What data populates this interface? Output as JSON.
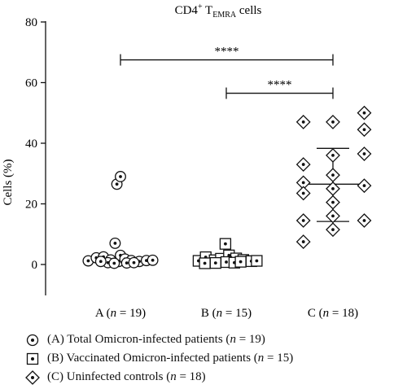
{
  "chart_data": {
    "type": "scatter",
    "title": "CD4+ TEMRA cells",
    "title_parts": {
      "base": "CD4",
      "sup": "+",
      "mid": " T",
      "sub": "EMRA",
      "tail": " cells"
    },
    "ylabel": "Cells (%)",
    "xlabel": "",
    "ylim": [
      0,
      80
    ],
    "yticks": [
      "0",
      "20",
      "40",
      "60",
      "80"
    ],
    "categories": [
      "A (n = 19)",
      "B (n = 15)",
      "C (n = 18)"
    ],
    "category_parts": [
      {
        "letter": "A",
        "n": "19"
      },
      {
        "letter": "B",
        "n": "15"
      },
      {
        "letter": "C",
        "n": "18"
      }
    ],
    "grid": false,
    "series": [
      {
        "name": "(A) Total Omicron-infected patients (n = 19)",
        "marker": "circle",
        "points": [
          [
            -0.36,
            1.2
          ],
          [
            -0.27,
            2.2
          ],
          [
            -0.19,
            2.5
          ],
          [
            -0.11,
            1.5
          ],
          [
            -0.02,
            1.0
          ],
          [
            -0.06,
            7.0
          ],
          [
            0.0,
            3.0
          ],
          [
            0.05,
            1.8
          ],
          [
            0.12,
            1.3
          ],
          [
            0.21,
            1.0
          ],
          [
            0.29,
            1.3
          ],
          [
            0.36,
            1.4
          ],
          [
            -0.14,
            0.6
          ],
          [
            -0.07,
            0.4
          ],
          [
            0.07,
            0.5
          ],
          [
            0.15,
            0.6
          ],
          [
            -0.22,
            1.0
          ],
          [
            -0.04,
            26.5
          ],
          [
            0.0,
            29.0
          ]
        ]
      },
      {
        "name": "(B) Vaccinated Omicron-infected patients (n = 15)",
        "marker": "square",
        "points": [
          [
            -0.31,
            1.2
          ],
          [
            -0.23,
            2.4
          ],
          [
            -0.13,
            1.4
          ],
          [
            -0.06,
            1.9
          ],
          [
            -0.01,
            6.8
          ],
          [
            0.03,
            3.0
          ],
          [
            0.11,
            2.0
          ],
          [
            0.19,
            1.5
          ],
          [
            0.28,
            1.1
          ],
          [
            0.34,
            1.2
          ],
          [
            -0.24,
            0.4
          ],
          [
            -0.12,
            0.5
          ],
          [
            0.0,
            0.8
          ],
          [
            0.09,
            0.6
          ],
          [
            0.16,
            0.9
          ]
        ]
      },
      {
        "name": "(C) Uninfected controls (n = 18)",
        "marker": "diamond",
        "points": [
          [
            -0.33,
            47.0
          ],
          [
            -0.33,
            33.0
          ],
          [
            -0.33,
            27.0
          ],
          [
            -0.33,
            23.5
          ],
          [
            -0.33,
            14.5
          ],
          [
            -0.33,
            7.5
          ],
          [
            0.0,
            47.0
          ],
          [
            0.0,
            36.0
          ],
          [
            0.0,
            29.5
          ],
          [
            0.0,
            25.0
          ],
          [
            0.0,
            20.5
          ],
          [
            0.0,
            16.0
          ],
          [
            0.0,
            11.5
          ],
          [
            0.35,
            50.0
          ],
          [
            0.35,
            44.5
          ],
          [
            0.35,
            36.5
          ],
          [
            0.35,
            26.0
          ],
          [
            0.35,
            14.5
          ]
        ]
      }
    ],
    "summary_bars": [
      {
        "category": "C (n = 18)",
        "median": 26.5,
        "upper": 38.3,
        "lower": 14.2
      }
    ],
    "significance": [
      {
        "from": "A (n = 19)",
        "to": "C (n = 18)",
        "y": 67.5,
        "label": "****"
      },
      {
        "from": "B (n = 15)",
        "to": "C (n = 18)",
        "y": 56.5,
        "label": "****"
      }
    ],
    "legend_position": "bottom"
  },
  "legend": {
    "items": [
      {
        "marker": "circle",
        "prefix": "(A) Total Omicron-infected patients (",
        "n": "19"
      },
      {
        "marker": "square",
        "prefix": "(B) Vaccinated Omicron-infected patients (",
        "n": "15"
      },
      {
        "marker": "diamond",
        "prefix": "(C) Uninfected controls (",
        "n": "18"
      }
    ]
  }
}
